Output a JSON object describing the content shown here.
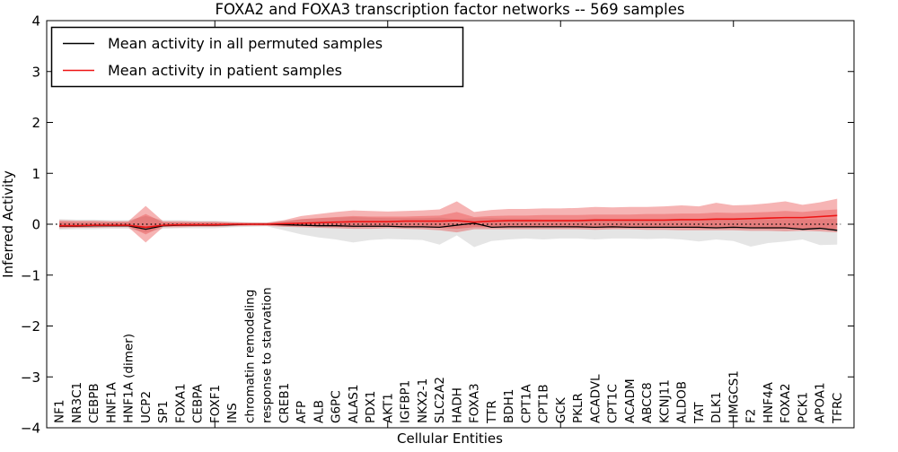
{
  "chart_data": {
    "type": "line",
    "title": "FOXA2 and FOXA3 transcription factor networks -- 569 samples",
    "xlabel": "Cellular Entities",
    "ylabel": "Inferred Activity",
    "ylim": [
      -4,
      4
    ],
    "ytick_values": [
      4,
      3,
      2,
      1,
      0,
      -1,
      -2,
      -3,
      -4
    ],
    "ytick_labels": [
      "4",
      "3",
      "2",
      "1",
      "0",
      "−1",
      "−2",
      "−3",
      "−4"
    ],
    "xtick_indices": [
      9,
      19,
      29,
      39
    ],
    "grid": false,
    "legend_position": "upper left",
    "zero_line": {
      "style": "dotted",
      "color": "#000000",
      "value": 0
    },
    "categories": [
      "NF1",
      "NR3C1",
      "CEBPB",
      "HNF1A",
      "HNF1A (dimer)",
      "UCP2",
      "SP1",
      "FOXA1",
      "CEBPA",
      "FOXF1",
      "INS",
      "chromatin remodeling",
      "response to starvation",
      "CREB1",
      "AFP",
      "ALB",
      "G6PC",
      "ALAS1",
      "PDX1",
      "AKT1",
      "IGFBP1",
      "NKX2-1",
      "SLC2A2",
      "HADH",
      "FOXA3",
      "TTR",
      "BDH1",
      "CPT1A",
      "CPT1B",
      "GCK",
      "PKLR",
      "ACADVL",
      "CPT1C",
      "ACADM",
      "ABCC8",
      "KCNJ11",
      "ALDOB",
      "TAT",
      "DLK1",
      "HMGCS1",
      "F2",
      "HNF4A",
      "FOXA2",
      "PCK1",
      "APOA1",
      "TFRC"
    ],
    "series": [
      {
        "name": "Mean activity in all permuted samples",
        "color": "#000000",
        "width": 1.3,
        "values": [
          -0.04,
          -0.04,
          -0.03,
          -0.03,
          -0.03,
          -0.1,
          -0.03,
          -0.02,
          -0.02,
          -0.02,
          -0.01,
          0,
          0,
          -0.01,
          -0.02,
          -0.03,
          -0.03,
          -0.04,
          -0.04,
          -0.04,
          -0.05,
          -0.05,
          -0.06,
          -0.02,
          0.02,
          -0.06,
          -0.05,
          -0.05,
          -0.05,
          -0.05,
          -0.05,
          -0.06,
          -0.05,
          -0.06,
          -0.06,
          -0.06,
          -0.06,
          -0.06,
          -0.07,
          -0.06,
          -0.07,
          -0.07,
          -0.07,
          -0.1,
          -0.08,
          -0.12
        ]
      },
      {
        "name": "Mean activity in patient samples",
        "color": "#ee1414",
        "width": 1.6,
        "values": [
          -0.03,
          -0.03,
          -0.02,
          -0.02,
          -0.02,
          -0.06,
          -0.02,
          -0.01,
          -0.01,
          -0.01,
          0,
          0,
          0,
          0.01,
          0.02,
          0.03,
          0.04,
          0.05,
          0.05,
          0.05,
          0.06,
          0.06,
          0.06,
          0.07,
          0.04,
          0.06,
          0.07,
          0.07,
          0.07,
          0.07,
          0.07,
          0.08,
          0.08,
          0.08,
          0.08,
          0.08,
          0.09,
          0.09,
          0.1,
          0.1,
          0.11,
          0.12,
          0.13,
          0.13,
          0.15,
          0.17
        ]
      }
    ],
    "bands": [
      {
        "name": "permuted-samples-band",
        "fill": "rgba(110,110,110,0.18)",
        "upper": [
          0.1,
          0.09,
          0.09,
          0.08,
          0.08,
          0.16,
          0.08,
          0.08,
          0.07,
          0.07,
          0.05,
          0.04,
          0.03,
          0.07,
          0.1,
          0.12,
          0.13,
          0.14,
          0.13,
          0.12,
          0.12,
          0.12,
          0.13,
          0.1,
          0.12,
          0.12,
          0.11,
          0.11,
          0.1,
          0.1,
          0.1,
          0.11,
          0.1,
          0.1,
          0.1,
          0.1,
          0.11,
          0.1,
          0.1,
          0.1,
          0.11,
          0.1,
          0.1,
          0.1,
          0.1,
          0.11
        ],
        "lower": [
          -0.11,
          -0.1,
          -0.1,
          -0.09,
          -0.09,
          -0.16,
          -0.09,
          -0.08,
          -0.08,
          -0.08,
          -0.06,
          -0.05,
          -0.04,
          -0.12,
          -0.2,
          -0.26,
          -0.3,
          -0.36,
          -0.31,
          -0.29,
          -0.3,
          -0.31,
          -0.4,
          -0.22,
          -0.45,
          -0.33,
          -0.3,
          -0.28,
          -0.3,
          -0.28,
          -0.28,
          -0.3,
          -0.28,
          -0.28,
          -0.29,
          -0.28,
          -0.3,
          -0.34,
          -0.3,
          -0.33,
          -0.44,
          -0.37,
          -0.34,
          -0.3,
          -0.41,
          -0.4
        ]
      },
      {
        "name": "patient-samples-band-outer",
        "fill": "rgba(230,40,40,0.35)",
        "upper": [
          0.08,
          0.07,
          0.07,
          0.06,
          0.06,
          0.36,
          0.06,
          0.06,
          0.05,
          0.05,
          0.04,
          0.03,
          0.03,
          0.08,
          0.16,
          0.2,
          0.24,
          0.27,
          0.26,
          0.25,
          0.26,
          0.27,
          0.29,
          0.45,
          0.24,
          0.28,
          0.3,
          0.3,
          0.31,
          0.31,
          0.32,
          0.34,
          0.33,
          0.34,
          0.34,
          0.35,
          0.37,
          0.35,
          0.42,
          0.37,
          0.38,
          0.41,
          0.45,
          0.38,
          0.43,
          0.5
        ],
        "lower": [
          -0.08,
          -0.07,
          -0.07,
          -0.06,
          -0.06,
          -0.36,
          -0.06,
          -0.06,
          -0.05,
          -0.05,
          -0.04,
          -0.03,
          -0.03,
          -0.05,
          -0.06,
          -0.07,
          -0.08,
          -0.09,
          -0.09,
          -0.08,
          -0.09,
          -0.1,
          -0.12,
          -0.16,
          -0.1,
          -0.1,
          -0.1,
          -0.1,
          -0.1,
          -0.1,
          -0.1,
          -0.11,
          -0.1,
          -0.1,
          -0.11,
          -0.11,
          -0.12,
          -0.12,
          -0.12,
          -0.12,
          -0.13,
          -0.13,
          -0.14,
          -0.13,
          -0.14,
          -0.16
        ]
      },
      {
        "name": "patient-samples-band-inner",
        "fill": "rgba(230,40,40,0.30)",
        "upper": [
          0.05,
          0.04,
          0.04,
          0.04,
          0.04,
          0.2,
          0.04,
          0.03,
          0.03,
          0.03,
          0.02,
          0.02,
          0.02,
          0.05,
          0.1,
          0.12,
          0.14,
          0.16,
          0.15,
          0.15,
          0.15,
          0.16,
          0.17,
          0.24,
          0.14,
          0.16,
          0.17,
          0.17,
          0.18,
          0.18,
          0.18,
          0.19,
          0.19,
          0.19,
          0.2,
          0.2,
          0.21,
          0.21,
          0.23,
          0.22,
          0.23,
          0.24,
          0.26,
          0.24,
          0.27,
          0.29
        ],
        "lower": [
          -0.05,
          -0.05,
          -0.04,
          -0.04,
          -0.04,
          -0.2,
          -0.04,
          -0.04,
          -0.03,
          -0.03,
          -0.02,
          -0.02,
          -0.02,
          -0.03,
          -0.04,
          -0.04,
          -0.05,
          -0.06,
          -0.05,
          -0.05,
          -0.05,
          -0.06,
          -0.07,
          -0.09,
          -0.06,
          -0.06,
          -0.06,
          -0.06,
          -0.06,
          -0.06,
          -0.07,
          -0.07,
          -0.07,
          -0.07,
          -0.07,
          -0.07,
          -0.07,
          -0.08,
          -0.08,
          -0.08,
          -0.08,
          -0.09,
          -0.09,
          -0.09,
          -0.09,
          -0.1
        ]
      }
    ]
  },
  "legend": {
    "entries": [
      {
        "label": "Mean activity in all permuted samples",
        "color": "#000000"
      },
      {
        "label": "Mean activity in patient samples",
        "color": "#ee1414"
      }
    ]
  }
}
